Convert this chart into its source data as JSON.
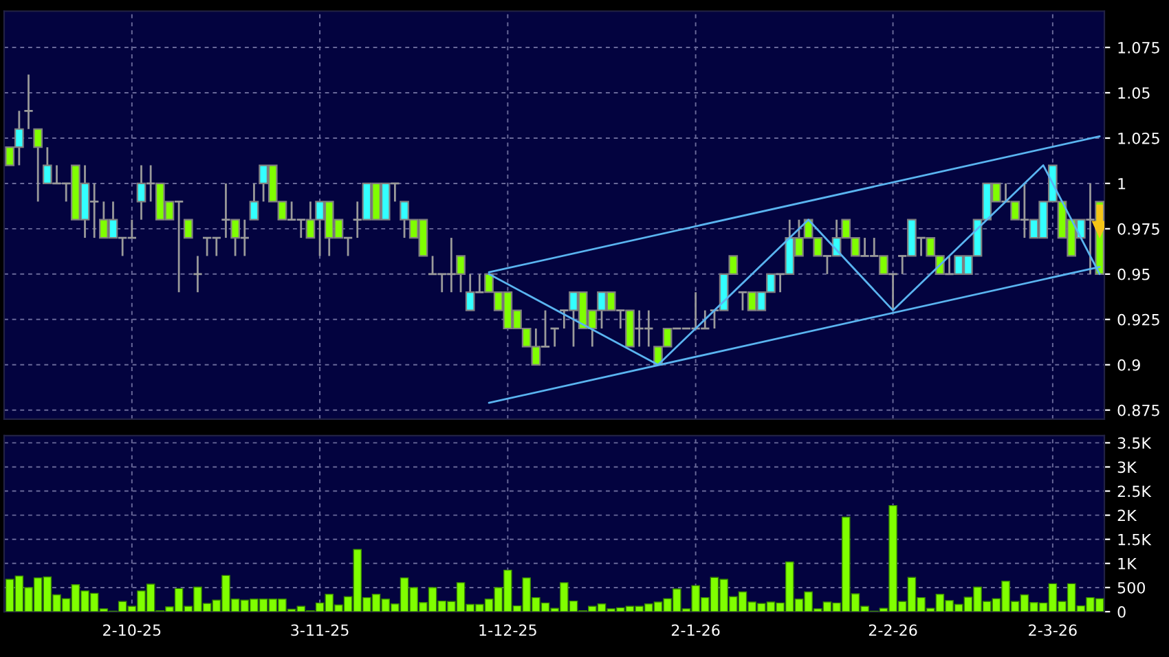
{
  "chart_data": [
    {
      "type": "candlestick",
      "categories": [
        null,
        null,
        null,
        null,
        null,
        null,
        null,
        null,
        null,
        null,
        null,
        null,
        null,
        null,
        null,
        null,
        null,
        null,
        null,
        null,
        null,
        null,
        null,
        null,
        null,
        null,
        null,
        null,
        null,
        null,
        null,
        null,
        null,
        null,
        null,
        null,
        null,
        null,
        null,
        null,
        null,
        null,
        null,
        null,
        null,
        null,
        null,
        null,
        null,
        null,
        null,
        null,
        null,
        null,
        null,
        null,
        null,
        null,
        null,
        null,
        null,
        null,
        null,
        null,
        null,
        null,
        null,
        null,
        null,
        null,
        null,
        null,
        null,
        null,
        null,
        null,
        null,
        null,
        null,
        null,
        null,
        null,
        null,
        null,
        null,
        null,
        null,
        null,
        null,
        null,
        null,
        null,
        null,
        null,
        null,
        null,
        null,
        null,
        null,
        null,
        null,
        null,
        null,
        null,
        null,
        null,
        null,
        null,
        null,
        null,
        null,
        null,
        null,
        null,
        null,
        null,
        null
      ],
      "ohlc": [
        [
          1.02,
          1.02,
          1.01,
          1.01
        ],
        [
          1.02,
          1.04,
          1.01,
          1.03
        ],
        [
          1.04,
          1.06,
          1.03,
          1.04
        ],
        [
          1.03,
          1.03,
          0.99,
          1.02
        ],
        [
          1.0,
          1.02,
          1.0,
          1.01
        ],
        [
          1.0,
          1.01,
          1.0,
          1.0
        ],
        [
          1.0,
          1.0,
          0.99,
          1.0
        ],
        [
          1.01,
          1.01,
          0.98,
          0.98
        ],
        [
          0.98,
          1.01,
          0.97,
          1.0
        ],
        [
          0.99,
          1.0,
          0.97,
          0.99
        ],
        [
          0.98,
          0.99,
          0.97,
          0.97
        ],
        [
          0.97,
          0.99,
          0.97,
          0.98
        ],
        [
          0.97,
          0.97,
          0.96,
          0.97
        ],
        [
          0.97,
          0.98,
          0.97,
          0.97
        ],
        [
          0.99,
          1.01,
          0.98,
          1.0
        ],
        [
          1.0,
          1.01,
          0.99,
          1.0
        ],
        [
          1.0,
          1.0,
          0.98,
          0.98
        ],
        [
          0.99,
          0.99,
          0.98,
          0.98
        ],
        [
          0.99,
          0.99,
          0.94,
          0.99
        ],
        [
          0.98,
          0.98,
          0.97,
          0.97
        ],
        [
          0.95,
          0.96,
          0.94,
          0.95
        ],
        [
          0.97,
          0.97,
          0.96,
          0.97
        ],
        [
          0.97,
          0.97,
          0.96,
          0.97
        ],
        [
          0.98,
          1.0,
          0.97,
          0.98
        ],
        [
          0.98,
          0.98,
          0.96,
          0.97
        ],
        [
          0.97,
          0.98,
          0.96,
          0.97
        ],
        [
          0.98,
          1.0,
          0.98,
          0.99
        ],
        [
          1.0,
          1.01,
          0.99,
          1.01
        ],
        [
          1.01,
          1.01,
          0.99,
          0.99
        ],
        [
          0.99,
          0.99,
          0.98,
          0.98
        ],
        [
          0.98,
          0.99,
          0.98,
          0.98
        ],
        [
          0.98,
          0.98,
          0.97,
          0.98
        ],
        [
          0.98,
          0.99,
          0.97,
          0.97
        ],
        [
          0.98,
          0.99,
          0.96,
          0.99
        ],
        [
          0.99,
          0.99,
          0.96,
          0.97
        ],
        [
          0.98,
          0.98,
          0.97,
          0.97
        ],
        [
          0.97,
          0.97,
          0.96,
          0.97
        ],
        [
          0.98,
          0.99,
          0.97,
          0.98
        ],
        [
          0.98,
          1.0,
          0.98,
          1.0
        ],
        [
          1.0,
          1.0,
          0.98,
          0.98
        ],
        [
          0.98,
          1.0,
          0.98,
          1.0
        ],
        [
          1.0,
          1.0,
          0.99,
          1.0
        ],
        [
          0.98,
          0.99,
          0.97,
          0.99
        ],
        [
          0.98,
          0.98,
          0.97,
          0.97
        ],
        [
          0.98,
          0.98,
          0.96,
          0.96
        ],
        [
          0.95,
          0.96,
          0.95,
          0.95
        ],
        [
          0.95,
          0.95,
          0.94,
          0.95
        ],
        [
          0.95,
          0.97,
          0.94,
          0.95
        ],
        [
          0.96,
          0.96,
          0.94,
          0.95
        ],
        [
          0.93,
          0.95,
          0.93,
          0.94
        ],
        [
          0.94,
          0.95,
          0.94,
          0.94
        ],
        [
          0.95,
          0.95,
          0.94,
          0.94
        ],
        [
          0.94,
          0.94,
          0.93,
          0.93
        ],
        [
          0.94,
          0.94,
          0.92,
          0.92
        ],
        [
          0.93,
          0.93,
          0.92,
          0.92
        ],
        [
          0.92,
          0.92,
          0.91,
          0.91
        ],
        [
          0.91,
          0.92,
          0.9,
          0.9
        ],
        [
          0.91,
          0.93,
          0.91,
          0.91
        ],
        [
          0.92,
          0.92,
          0.91,
          0.92
        ],
        [
          0.93,
          0.93,
          0.92,
          0.93
        ],
        [
          0.93,
          0.94,
          0.91,
          0.94
        ],
        [
          0.94,
          0.94,
          0.92,
          0.92
        ],
        [
          0.93,
          0.93,
          0.91,
          0.92
        ],
        [
          0.93,
          0.94,
          0.92,
          0.94
        ],
        [
          0.94,
          0.94,
          0.93,
          0.93
        ],
        [
          0.93,
          0.93,
          0.92,
          0.93
        ],
        [
          0.93,
          0.93,
          0.91,
          0.91
        ],
        [
          0.92,
          0.93,
          0.91,
          0.92
        ],
        [
          0.92,
          0.93,
          0.91,
          0.92
        ],
        [
          0.91,
          0.91,
          0.9,
          0.9
        ],
        [
          0.92,
          0.92,
          0.91,
          0.91
        ],
        [
          0.92,
          0.92,
          0.92,
          0.92
        ],
        [
          0.92,
          0.92,
          0.92,
          0.92
        ],
        [
          0.92,
          0.94,
          0.92,
          0.92
        ],
        [
          0.92,
          0.93,
          0.92,
          0.92
        ],
        [
          0.93,
          0.93,
          0.92,
          0.93
        ],
        [
          0.93,
          0.95,
          0.93,
          0.95
        ],
        [
          0.96,
          0.96,
          0.95,
          0.95
        ],
        [
          0.94,
          0.94,
          0.93,
          0.94
        ],
        [
          0.94,
          0.94,
          0.93,
          0.93
        ],
        [
          0.93,
          0.94,
          0.93,
          0.94
        ],
        [
          0.94,
          0.95,
          0.94,
          0.95
        ],
        [
          0.95,
          0.95,
          0.94,
          0.95
        ],
        [
          0.95,
          0.98,
          0.95,
          0.97
        ],
        [
          0.97,
          0.98,
          0.96,
          0.96
        ],
        [
          0.98,
          0.98,
          0.97,
          0.97
        ],
        [
          0.97,
          0.97,
          0.96,
          0.96
        ],
        [
          0.96,
          0.96,
          0.95,
          0.96
        ],
        [
          0.96,
          0.98,
          0.96,
          0.97
        ],
        [
          0.98,
          0.98,
          0.97,
          0.97
        ],
        [
          0.97,
          0.97,
          0.96,
          0.96
        ],
        [
          0.96,
          0.97,
          0.96,
          0.96
        ],
        [
          0.96,
          0.97,
          0.96,
          0.96
        ],
        [
          0.96,
          0.96,
          0.95,
          0.95
        ],
        [
          0.95,
          0.95,
          0.93,
          0.95
        ],
        [
          0.96,
          0.96,
          0.95,
          0.96
        ],
        [
          0.96,
          0.98,
          0.96,
          0.98
        ],
        [
          0.97,
          0.97,
          0.96,
          0.97
        ],
        [
          0.97,
          0.97,
          0.96,
          0.96
        ],
        [
          0.96,
          0.96,
          0.95,
          0.95
        ],
        [
          0.95,
          0.96,
          0.95,
          0.95
        ],
        [
          0.95,
          0.96,
          0.95,
          0.96
        ],
        [
          0.95,
          0.96,
          0.95,
          0.96
        ],
        [
          0.96,
          0.98,
          0.96,
          0.98
        ],
        [
          0.98,
          1.0,
          0.98,
          1.0
        ],
        [
          1.0,
          1.0,
          0.99,
          0.99
        ],
        [
          0.99,
          1.0,
          0.99,
          0.99
        ],
        [
          0.99,
          0.99,
          0.98,
          0.98
        ],
        [
          0.98,
          1.0,
          0.97,
          0.98
        ],
        [
          0.97,
          0.98,
          0.97,
          0.98
        ],
        [
          0.97,
          0.99,
          0.97,
          0.99
        ],
        [
          0.99,
          1.01,
          0.99,
          1.01
        ],
        [
          0.99,
          0.99,
          0.97,
          0.97
        ],
        [
          0.98,
          0.98,
          0.96,
          0.96
        ],
        [
          0.97,
          0.98,
          0.97,
          0.98
        ],
        [
          0.98,
          1.0,
          0.95,
          0.98
        ],
        [
          0.99,
          0.99,
          0.95,
          0.95
        ]
      ],
      "colors": [
        "#80ff00",
        "#33ffff",
        "#a0a0a0",
        "#80ff00",
        "#33ffff",
        "#a0a0a0",
        "#a0a0a0",
        "#80ff00",
        "#33ffff",
        "#a0a0a0",
        "#80ff00",
        "#33ffff",
        "#a0a0a0",
        "#a0a0a0",
        "#33ffff",
        "#a0a0a0",
        "#80ff00",
        "#80ff00",
        "#a0a0a0",
        "#80ff00",
        "#a0a0a0",
        "#a0a0a0",
        "#a0a0a0",
        "#a0a0a0",
        "#80ff00",
        "#a0a0a0",
        "#33ffff",
        "#33ffff",
        "#80ff00",
        "#80ff00",
        "#a0a0a0",
        "#a0a0a0",
        "#80ff00",
        "#33ffff",
        "#80ff00",
        "#80ff00",
        "#a0a0a0",
        "#a0a0a0",
        "#33ffff",
        "#80ff00",
        "#33ffff",
        "#a0a0a0",
        "#33ffff",
        "#80ff00",
        "#80ff00",
        "#a0a0a0",
        "#a0a0a0",
        "#a0a0a0",
        "#80ff00",
        "#33ffff",
        "#a0a0a0",
        "#80ff00",
        "#80ff00",
        "#80ff00",
        "#80ff00",
        "#80ff00",
        "#80ff00",
        "#a0a0a0",
        "#a0a0a0",
        "#a0a0a0",
        "#33ffff",
        "#80ff00",
        "#80ff00",
        "#33ffff",
        "#80ff00",
        "#a0a0a0",
        "#80ff00",
        "#a0a0a0",
        "#a0a0a0",
        "#80ff00",
        "#80ff00",
        "#a0a0a0",
        "#a0a0a0",
        "#a0a0a0",
        "#a0a0a0",
        "#a0a0a0",
        "#33ffff",
        "#80ff00",
        "#a0a0a0",
        "#80ff00",
        "#33ffff",
        "#33ffff",
        "#a0a0a0",
        "#33ffff",
        "#80ff00",
        "#80ff00",
        "#80ff00",
        "#a0a0a0",
        "#33ffff",
        "#80ff00",
        "#80ff00",
        "#a0a0a0",
        "#a0a0a0",
        "#80ff00",
        "#a0a0a0",
        "#a0a0a0",
        "#33ffff",
        "#a0a0a0",
        "#80ff00",
        "#80ff00",
        "#a0a0a0",
        "#33ffff",
        "#33ffff",
        "#33ffff",
        "#33ffff",
        "#80ff00",
        "#a0a0a0",
        "#80ff00",
        "#a0a0a0",
        "#33ffff",
        "#33ffff",
        "#33ffff",
        "#80ff00",
        "#80ff00",
        "#33ffff",
        "#a0a0a0",
        "#80ff00"
      ],
      "series": [
        {
          "type": "line",
          "color": "#5ab4f0",
          "values": [
            null,
            null,
            null,
            null,
            null,
            null,
            null,
            null,
            null,
            null,
            null,
            null,
            null,
            null,
            null,
            null,
            null,
            null,
            null,
            null,
            null,
            null,
            null,
            null,
            null,
            null,
            null,
            null,
            null,
            null,
            null,
            null,
            null,
            null,
            null,
            null,
            null,
            null,
            null,
            null,
            null,
            null,
            null,
            null,
            null,
            null,
            null,
            null,
            null,
            null,
            null,
            0.951,
            null,
            null,
            null,
            null,
            null,
            null,
            null,
            null,
            null,
            null,
            null,
            null,
            null,
            null,
            null,
            null,
            null,
            null,
            null,
            null,
            null,
            null,
            null,
            null,
            null,
            null,
            null,
            null,
            null,
            null,
            null,
            null,
            null,
            null,
            null,
            null,
            null,
            null,
            null,
            null,
            null,
            null,
            null,
            null,
            null,
            null,
            null,
            null,
            null,
            null,
            null,
            null,
            null,
            null,
            null,
            null,
            null,
            null,
            null,
            null,
            null,
            null,
            null,
            null,
            1.026
          ]
        },
        {
          "type": "line",
          "color": "#5ab4f0",
          "values": [
            null,
            null,
            null,
            null,
            null,
            null,
            null,
            null,
            null,
            null,
            null,
            null,
            null,
            null,
            null,
            null,
            null,
            null,
            null,
            null,
            null,
            null,
            null,
            null,
            null,
            null,
            null,
            null,
            null,
            null,
            null,
            null,
            null,
            null,
            null,
            null,
            null,
            null,
            null,
            null,
            null,
            null,
            null,
            null,
            null,
            null,
            null,
            null,
            null,
            null,
            null,
            0.879,
            null,
            null,
            null,
            null,
            null,
            null,
            null,
            null,
            null,
            null,
            null,
            null,
            null,
            null,
            null,
            null,
            null,
            null,
            null,
            null,
            null,
            null,
            null,
            null,
            null,
            null,
            null,
            null,
            null,
            null,
            null,
            null,
            null,
            null,
            null,
            null,
            null,
            null,
            null,
            null,
            null,
            null,
            null,
            null,
            null,
            null,
            null,
            null,
            null,
            null,
            null,
            null,
            null,
            null,
            null,
            null,
            null,
            null,
            null,
            null,
            null,
            null,
            null,
            null,
            0.954
          ]
        },
        {
          "type": "line",
          "color": "#5ab4f0",
          "values": [
            null,
            null,
            null,
            null,
            null,
            null,
            null,
            null,
            null,
            null,
            null,
            null,
            null,
            null,
            null,
            null,
            null,
            null,
            null,
            null,
            null,
            null,
            null,
            null,
            null,
            null,
            null,
            null,
            null,
            null,
            null,
            null,
            null,
            null,
            null,
            null,
            null,
            null,
            null,
            null,
            null,
            null,
            null,
            null,
            null,
            null,
            null,
            null,
            null,
            null,
            null,
            0.95,
            null,
            null,
            null,
            null,
            null,
            null,
            null,
            null,
            null,
            null,
            null,
            null,
            null,
            null,
            null,
            null,
            null,
            0.9,
            null,
            null,
            null,
            null,
            null,
            null,
            null,
            null,
            null,
            null,
            null,
            null,
            null,
            null,
            null,
            0.98,
            null,
            null,
            null,
            null,
            null,
            null,
            null,
            null,
            0.93,
            null,
            null,
            null,
            null,
            null,
            null,
            null,
            null,
            null,
            null,
            null,
            null,
            null,
            null,
            null,
            1.01,
            null,
            null,
            null,
            null,
            null,
            0.95
          ]
        }
      ],
      "ylim": [
        0.87,
        1.095
      ],
      "yticks": [
        0.875,
        0.9,
        0.925,
        0.95,
        0.975,
        1,
        1.025,
        1.05,
        1.075
      ],
      "grid": true,
      "tick_labels": "y"
    },
    {
      "type": "bar",
      "categories": [
        null,
        null,
        null,
        null,
        null,
        null,
        null,
        null,
        null,
        null,
        null,
        null,
        null,
        "2-10-25",
        null,
        null,
        null,
        null,
        null,
        null,
        null,
        null,
        null,
        null,
        null,
        null,
        null,
        null,
        null,
        null,
        null,
        null,
        null,
        "3-11-25",
        null,
        null,
        null,
        null,
        null,
        null,
        null,
        null,
        null,
        null,
        null,
        null,
        null,
        null,
        null,
        null,
        null,
        null,
        null,
        "1-12-25",
        null,
        null,
        null,
        null,
        null,
        null,
        null,
        null,
        null,
        null,
        null,
        null,
        null,
        null,
        null,
        null,
        null,
        null,
        null,
        "2-1-26",
        null,
        null,
        null,
        null,
        null,
        null,
        null,
        null,
        null,
        null,
        null,
        null,
        null,
        null,
        null,
        null,
        null,
        null,
        null,
        null,
        "2-2-26",
        null,
        null,
        null,
        null,
        null,
        null,
        null,
        null,
        null,
        null,
        null,
        null,
        null,
        null,
        null,
        null,
        "2-3-26",
        null,
        null,
        null,
        null,
        null
      ],
      "values": [
        670,
        740,
        500,
        700,
        720,
        350,
        270,
        560,
        430,
        380,
        60,
        10,
        210,
        110,
        430,
        570,
        20,
        100,
        480,
        110,
        510,
        170,
        240,
        750,
        260,
        240,
        260,
        260,
        260,
        260,
        50,
        110,
        20,
        180,
        360,
        140,
        310,
        1290,
        290,
        360,
        260,
        160,
        700,
        500,
        190,
        500,
        220,
        210,
        600,
        150,
        150,
        260,
        500,
        860,
        120,
        700,
        290,
        180,
        70,
        600,
        220,
        20,
        110,
        160,
        60,
        80,
        110,
        110,
        160,
        200,
        270,
        470,
        60,
        540,
        290,
        710,
        670,
        310,
        410,
        200,
        170,
        200,
        180,
        1030,
        260,
        410,
        60,
        200,
        180,
        1960,
        370,
        110,
        10,
        70,
        2200,
        210,
        710,
        290,
        70,
        360,
        230,
        150,
        300,
        510,
        210,
        270,
        630,
        210,
        350,
        190,
        180,
        580,
        210,
        580,
        120,
        290,
        270
      ],
      "color": "#80ff00",
      "ylim": [
        0,
        3650
      ],
      "yticks": [
        0,
        500,
        {
          "value": 1000,
          "label": "1K"
        },
        {
          "value": 1500,
          "label": "1.5K"
        },
        {
          "value": 2000,
          "label": "2K"
        },
        {
          "value": 2500,
          "label": "2.5K"
        },
        {
          "value": 3000,
          "label": "3K"
        },
        {
          "value": 3500,
          "label": "3.5K"
        }
      ],
      "grid": true
    }
  ]
}
